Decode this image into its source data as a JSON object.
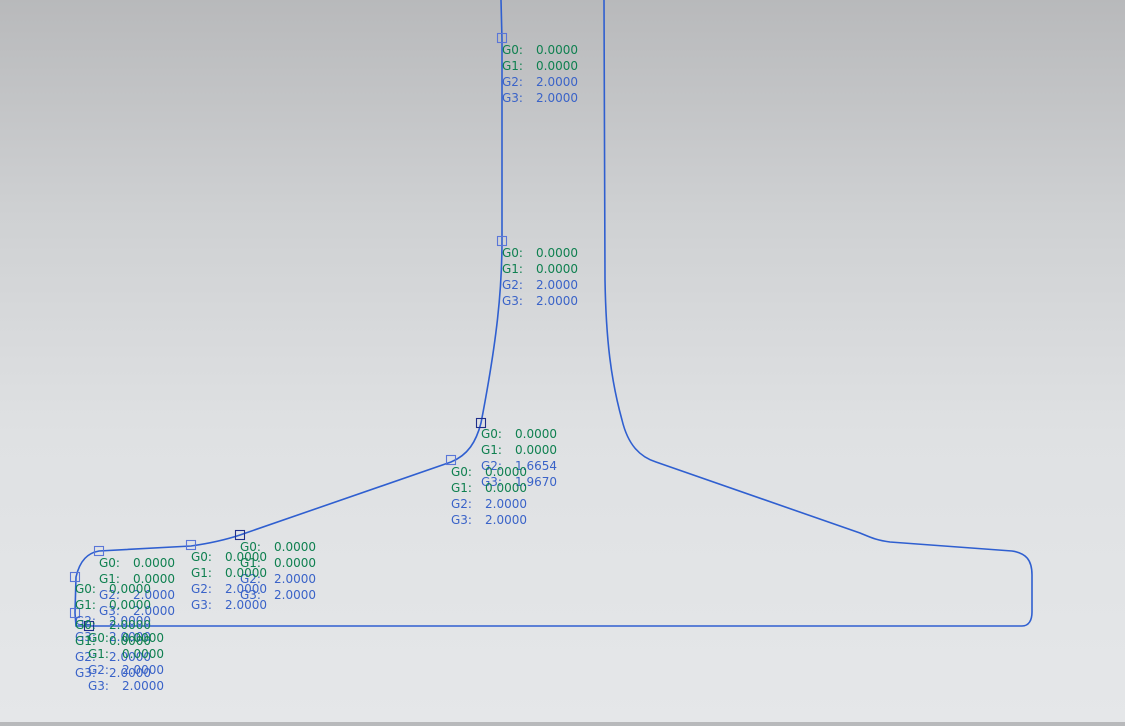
{
  "colors": {
    "curve": "#2f5fd0",
    "g0g1": "#0f8050",
    "g2g3": "#3a63c8",
    "node_active": "#1f2f8a",
    "node_default": "#5a76d8"
  },
  "annotations": [
    {
      "id": "stem-top",
      "rows": [
        {
          "k": "G0:",
          "v": "0.0000"
        },
        {
          "k": "G1:",
          "v": "0.0000"
        },
        {
          "k": "G2:",
          "v": "2.0000"
        },
        {
          "k": "G3:",
          "v": "2.0000"
        }
      ]
    },
    {
      "id": "stem-mid",
      "rows": [
        {
          "k": "G0:",
          "v": "0.0000"
        },
        {
          "k": "G1:",
          "v": "0.0000"
        },
        {
          "k": "G2:",
          "v": "2.0000"
        },
        {
          "k": "G3:",
          "v": "2.0000"
        }
      ]
    },
    {
      "id": "web-fillet",
      "rows": [
        {
          "k": "G0:",
          "v": "0.0000"
        },
        {
          "k": "G1:",
          "v": "0.0000"
        },
        {
          "k": "G2:",
          "v": "1.6654"
        },
        {
          "k": "G3:",
          "v": "1.9670"
        }
      ]
    },
    {
      "id": "flange-upper",
      "rows": [
        {
          "k": "G0:",
          "v": "0.0000"
        },
        {
          "k": "G1:",
          "v": "0.0000"
        },
        {
          "k": "G2:",
          "v": "2.0000"
        },
        {
          "k": "G3:",
          "v": "2.0000"
        }
      ]
    },
    {
      "id": "flange-a",
      "rows": [
        {
          "k": "G0:",
          "v": "0.0000"
        },
        {
          "k": "G1:",
          "v": "0.0000"
        },
        {
          "k": "G2:",
          "v": "2.0000"
        },
        {
          "k": "G3:",
          "v": "2.0000"
        }
      ]
    },
    {
      "id": "flange-b",
      "rows": [
        {
          "k": "G0:",
          "v": "0.0000"
        },
        {
          "k": "G1:",
          "v": "0.0000"
        },
        {
          "k": "G2:",
          "v": "2.0000"
        },
        {
          "k": "G3:",
          "v": "2.0000"
        }
      ]
    },
    {
      "id": "corner-top",
      "rows": [
        {
          "k": "G0:",
          "v": "0.0000"
        },
        {
          "k": "G1:",
          "v": "0.0000"
        },
        {
          "k": "G2:",
          "v": "2.0000"
        },
        {
          "k": "G3:",
          "v": "2.0000"
        }
      ]
    },
    {
      "id": "corner-mid",
      "rows": [
        {
          "k": "G0:",
          "v": "0.0000"
        },
        {
          "k": "G1:",
          "v": "0.0000"
        },
        {
          "k": "G2:",
          "v": "2.0000"
        },
        {
          "k": "G3:",
          "v": "2.0000"
        }
      ]
    },
    {
      "id": "corner-low",
      "rows": [
        {
          "k": "G0:",
          "v": "2.0000"
        },
        {
          "k": "G1:",
          "v": "0.0000"
        },
        {
          "k": "G2:",
          "v": "2.0000"
        },
        {
          "k": "G3:",
          "v": "2.0000"
        }
      ]
    },
    {
      "id": "corner-base",
      "rows": [
        {
          "k": "G0:",
          "v": "0.0000"
        },
        {
          "k": "G1:",
          "v": "0.0000"
        },
        {
          "k": "G2:",
          "v": "2.0000"
        },
        {
          "k": "G3:",
          "v": "2.0000"
        }
      ]
    }
  ]
}
